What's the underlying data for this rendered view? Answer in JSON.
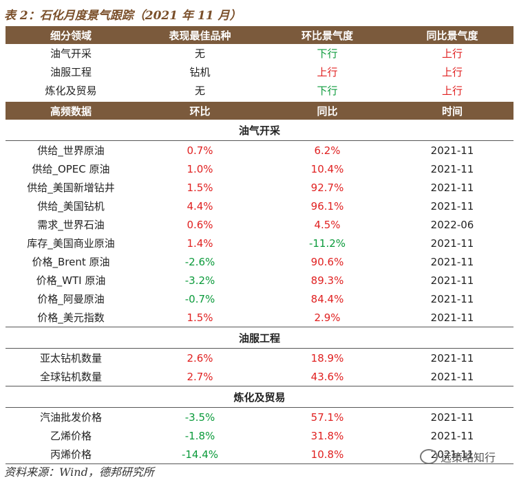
{
  "title": "表 2：石化月度景气跟踪（2021 年 11 月）",
  "table1": {
    "headers": [
      "细分领域",
      "表现最佳品种",
      "环比景气度",
      "同比景气度"
    ],
    "rows": [
      {
        "field": "油气开采",
        "best": "无",
        "mom": "下行",
        "mom_color": "green",
        "yoy": "上行",
        "yoy_color": "red"
      },
      {
        "field": "油服工程",
        "best": "钻机",
        "mom": "上行",
        "mom_color": "red",
        "yoy": "上行",
        "yoy_color": "red"
      },
      {
        "field": "炼化及贸易",
        "best": "无",
        "mom": "下行",
        "mom_color": "green",
        "yoy": "上行",
        "yoy_color": "red"
      }
    ]
  },
  "table2": {
    "headers": [
      "高频数据",
      "环比",
      "同比",
      "时间"
    ],
    "sections": [
      {
        "name": "油气开采",
        "rows": [
          {
            "item": "供给_世界原油",
            "mom": "0.7%",
            "mom_color": "red",
            "yoy": "6.2%",
            "yoy_color": "red",
            "time": "2021-11"
          },
          {
            "item": "供给_OPEC 原油",
            "mom": "1.0%",
            "mom_color": "red",
            "yoy": "10.4%",
            "yoy_color": "red",
            "time": "2021-11"
          },
          {
            "item": "供给_美国新增钻井",
            "mom": "1.5%",
            "mom_color": "red",
            "yoy": "92.7%",
            "yoy_color": "red",
            "time": "2021-11"
          },
          {
            "item": "供给_美国钻机",
            "mom": "4.4%",
            "mom_color": "red",
            "yoy": "96.1%",
            "yoy_color": "red",
            "time": "2021-11"
          },
          {
            "item": "需求_世界石油",
            "mom": "0.6%",
            "mom_color": "red",
            "yoy": "4.5%",
            "yoy_color": "red",
            "time": "2022-06"
          },
          {
            "item": "库存_美国商业原油",
            "mom": "1.4%",
            "mom_color": "red",
            "yoy": "-11.2%",
            "yoy_color": "green",
            "time": "2021-11"
          },
          {
            "item": "价格_Brent 原油",
            "mom": "-2.6%",
            "mom_color": "green",
            "yoy": "90.6%",
            "yoy_color": "red",
            "time": "2021-11"
          },
          {
            "item": "价格_WTI 原油",
            "mom": "-3.2%",
            "mom_color": "green",
            "yoy": "89.3%",
            "yoy_color": "red",
            "time": "2021-11"
          },
          {
            "item": "价格_阿曼原油",
            "mom": "-0.7%",
            "mom_color": "green",
            "yoy": "84.4%",
            "yoy_color": "red",
            "time": "2021-11"
          },
          {
            "item": "价格_美元指数",
            "mom": "1.5%",
            "mom_color": "red",
            "yoy": "2.9%",
            "yoy_color": "red",
            "time": "2021-11"
          }
        ]
      },
      {
        "name": "油服工程",
        "rows": [
          {
            "item": "亚太钻机数量",
            "mom": "2.6%",
            "mom_color": "red",
            "yoy": "18.9%",
            "yoy_color": "red",
            "time": "2021-11"
          },
          {
            "item": "全球钻机数量",
            "mom": "2.7%",
            "mom_color": "red",
            "yoy": "43.6%",
            "yoy_color": "red",
            "time": "2021-11"
          }
        ]
      },
      {
        "name": "炼化及贸易",
        "rows": [
          {
            "item": "汽油批发价格",
            "mom": "-3.5%",
            "mom_color": "green",
            "yoy": "57.1%",
            "yoy_color": "red",
            "time": "2021-11"
          },
          {
            "item": "乙烯价格",
            "mom": "-1.8%",
            "mom_color": "green",
            "yoy": "31.8%",
            "yoy_color": "red",
            "time": "2021-11"
          },
          {
            "item": "丙烯价格",
            "mom": "-14.4%",
            "mom_color": "green",
            "yoy": "10.8%",
            "yoy_color": "red",
            "time": "2021-11"
          }
        ]
      }
    ]
  },
  "source": "资料来源：Wind，德邦研究所",
  "watermark": "远策略知行",
  "colors": {
    "header_bg": "#7b5a3c",
    "up": "#e02020",
    "down": "#0a9a3a"
  }
}
